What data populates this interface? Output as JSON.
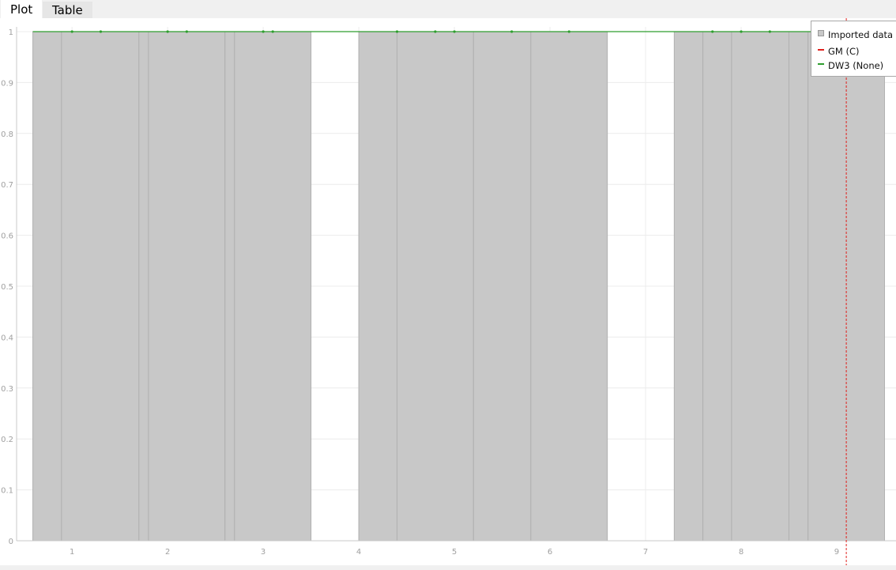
{
  "tabs": [
    {
      "label": "Plot",
      "active": true
    },
    {
      "label": "Table",
      "active": false
    }
  ],
  "legend": [
    {
      "label": "Imported data",
      "kind": "box",
      "color": "#c8c8c8"
    },
    {
      "label": "GM (C)",
      "kind": "line",
      "color": "#e0201c"
    },
    {
      "label": "DW3 (None)",
      "kind": "line",
      "color": "#2e9e2e"
    }
  ],
  "colors": {
    "bar_fill": "#c8c8c8",
    "bar_edge": "#b0b0b0",
    "grid": "#ececec",
    "gm_line": "#e0201c",
    "dw3_line": "#2e9e2e"
  },
  "chart_data": {
    "type": "bar",
    "title": "",
    "xlabel": "",
    "ylabel": "",
    "xlim": [
      0.42,
      9.62
    ],
    "ylim": [
      0,
      1
    ],
    "grid": true,
    "legend_position": "top-right",
    "x_ticks": [
      1,
      2,
      3,
      4,
      5,
      6,
      7,
      8,
      9
    ],
    "y_ticks": [
      0,
      0.1,
      0.2,
      0.3,
      0.4,
      0.5,
      0.6,
      0.7,
      0.8,
      0.9,
      1
    ],
    "y_tick_labels": [
      "0",
      "0.1",
      "0.2",
      "0.3",
      "0.4",
      "0.5",
      "0.6",
      "0.7",
      "0.8",
      "0.9",
      "1"
    ],
    "series": [
      {
        "name": "Imported data",
        "kind": "bins",
        "bins": [
          {
            "x0": 0.59,
            "x1": 0.89,
            "value": 1
          },
          {
            "x0": 0.89,
            "x1": 1.7,
            "value": 1
          },
          {
            "x0": 1.7,
            "x1": 1.8,
            "value": 1
          },
          {
            "x0": 1.8,
            "x1": 2.6,
            "value": 1
          },
          {
            "x0": 2.6,
            "x1": 2.7,
            "value": 1
          },
          {
            "x0": 2.7,
            "x1": 3.5,
            "value": 1
          },
          {
            "x0": 4.0,
            "x1": 4.4,
            "value": 1
          },
          {
            "x0": 4.4,
            "x1": 5.2,
            "value": 1
          },
          {
            "x0": 5.2,
            "x1": 5.8,
            "value": 1
          },
          {
            "x0": 5.8,
            "x1": 6.6,
            "value": 1
          },
          {
            "x0": 7.3,
            "x1": 7.6,
            "value": 1
          },
          {
            "x0": 7.6,
            "x1": 7.9,
            "value": 1
          },
          {
            "x0": 7.9,
            "x1": 8.5,
            "value": 1
          },
          {
            "x0": 8.5,
            "x1": 8.7,
            "value": 1
          },
          {
            "x0": 8.7,
            "x1": 9.5,
            "value": 1
          }
        ]
      },
      {
        "name": "DW3 (None)",
        "kind": "line",
        "x": [
          1,
          1.3,
          2,
          2.2,
          3,
          3.1,
          4.4,
          4.8,
          5,
          5.6,
          6.2,
          7.7,
          8,
          8.3,
          9.1
        ],
        "y": [
          1,
          1,
          1,
          1,
          1,
          1,
          1,
          1,
          1,
          1,
          1,
          1,
          1,
          1,
          1
        ]
      },
      {
        "name": "GM (C)",
        "kind": "vline",
        "x": 9.1
      }
    ]
  }
}
